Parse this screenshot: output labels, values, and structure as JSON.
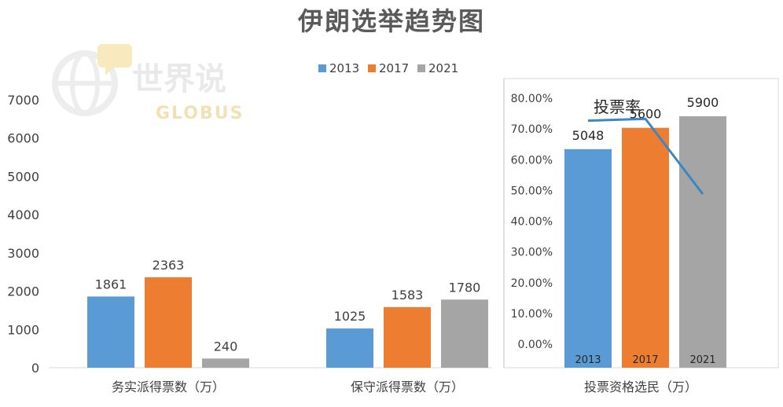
{
  "title": "伊朗选举趋势图",
  "watermark": {
    "cn": "世界说",
    "en": "GLOBUS"
  },
  "colors": {
    "2013": "#5b9bd5",
    "2017": "#ed7d31",
    "2021": "#a5a5a5",
    "line": "#3a87c3"
  },
  "chart_data": [
    {
      "type": "bar",
      "categories": [
        "务实派得票数（万）",
        "保守派得票数（万）"
      ],
      "series": [
        {
          "name": "2013",
          "values": [
            1861,
            1025
          ]
        },
        {
          "name": "2017",
          "values": [
            2363,
            1583
          ]
        },
        {
          "name": "2021",
          "values": [
            240,
            1780
          ]
        }
      ],
      "ylim": [
        0,
        7000
      ],
      "yticks": [
        "0",
        "1000",
        "2000",
        "3000",
        "4000",
        "5000",
        "6000",
        "7000"
      ],
      "legend": "top"
    },
    {
      "type": "bar",
      "category": "投票资格选民（万）",
      "x": [
        "2013",
        "2017",
        "2021"
      ],
      "values": [
        5048,
        5600,
        5900
      ],
      "line": {
        "name": "投票率",
        "values": [
          72.7,
          73.3,
          48.8
        ]
      },
      "y2ticks": [
        "0.00%",
        "10.00%",
        "20.00%",
        "30.00%",
        "40.00%",
        "50.00%",
        "60.00%",
        "70.00%",
        "80.00%"
      ],
      "y2lim": [
        0,
        80
      ]
    }
  ]
}
